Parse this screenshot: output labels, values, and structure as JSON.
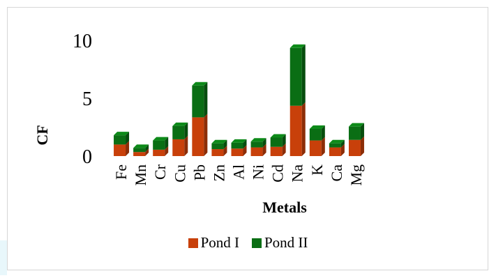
{
  "chart_data": {
    "type": "bar",
    "stacked": true,
    "categories": [
      "Fe",
      "Mn",
      "Cr",
      "Cu",
      "Pb",
      "Zn",
      "Al",
      "Ni",
      "Cd",
      "Na",
      "K",
      "Ca",
      "Mg"
    ],
    "series": [
      {
        "name": "Pond I",
        "color": "#c8400a",
        "values": [
          1.0,
          0.35,
          0.55,
          1.45,
          3.35,
          0.6,
          0.65,
          0.75,
          0.8,
          4.35,
          1.35,
          0.75,
          1.4
        ]
      },
      {
        "name": "Pond II",
        "color": "#0a6e14",
        "values": [
          0.8,
          0.35,
          0.8,
          1.15,
          2.75,
          0.5,
          0.5,
          0.5,
          0.8,
          5.0,
          1.0,
          0.35,
          1.15
        ]
      }
    ],
    "ylabel": "CF",
    "xlabel": "Metals",
    "ylim": [
      0,
      10
    ],
    "yticks": [
      0,
      5,
      10
    ],
    "grid": false,
    "legend": "bottom"
  }
}
